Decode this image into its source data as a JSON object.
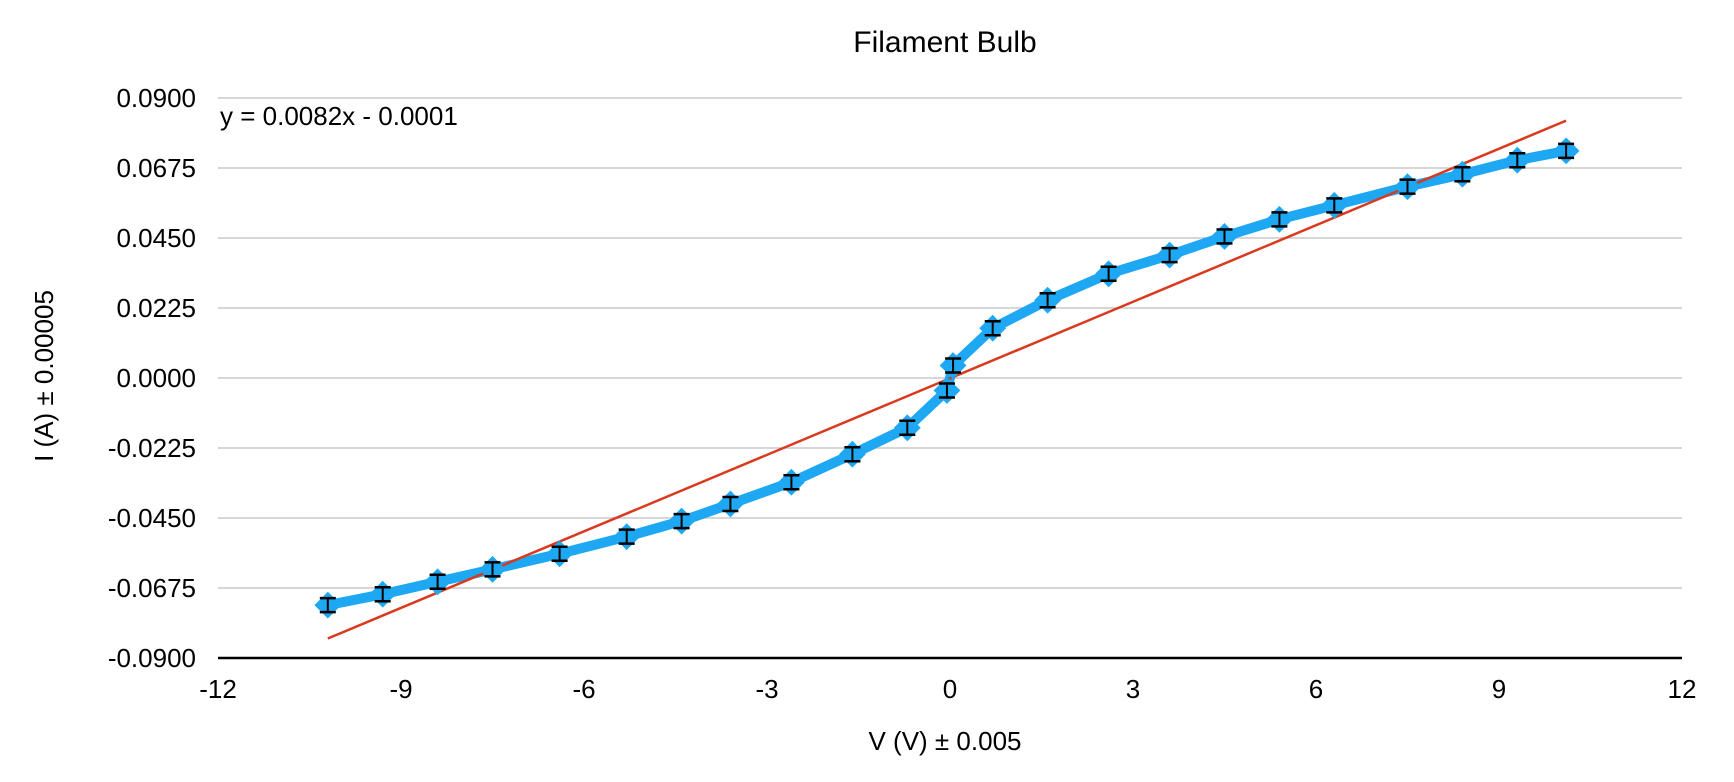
{
  "chart_data": {
    "type": "line",
    "title": "Filament Bulb",
    "xlabel": "V (V) ± 0.005",
    "ylabel": "I (A) ± 0.00005",
    "xlim": [
      -12,
      12
    ],
    "ylim": [
      -0.09,
      0.09
    ],
    "x_ticks": [
      "-12",
      "-9",
      "-6",
      "-3",
      "0",
      "3",
      "6",
      "9",
      "12"
    ],
    "y_ticks": [
      "0.0900",
      "0.0675",
      "0.0450",
      "0.0225",
      "0.0000",
      "-0.0225",
      "-0.0450",
      "-0.0675",
      "-0.0900"
    ],
    "grid": "horizontal",
    "legend": "none",
    "trendline_label": "y = 0.0082x - 0.0001",
    "series": [
      {
        "color": "#1ea7f2",
        "marker": "diamond",
        "error_bars": true,
        "points": [
          [
            -10.2,
            -0.073
          ],
          [
            -9.3,
            -0.0695
          ],
          [
            -8.4,
            -0.0655
          ],
          [
            -7.5,
            -0.0615
          ],
          [
            -6.4,
            -0.0565
          ],
          [
            -5.3,
            -0.051
          ],
          [
            -4.4,
            -0.046
          ],
          [
            -3.6,
            -0.0405
          ],
          [
            -2.6,
            -0.0335
          ],
          [
            -1.6,
            -0.0245
          ],
          [
            -0.7,
            -0.016
          ],
          [
            -0.05,
            -0.004
          ],
          [
            0.05,
            0.004
          ],
          [
            0.7,
            0.016
          ],
          [
            1.6,
            0.025
          ],
          [
            2.6,
            0.0335
          ],
          [
            3.6,
            0.0395
          ],
          [
            4.5,
            0.0455
          ],
          [
            5.4,
            0.051
          ],
          [
            6.3,
            0.0555
          ],
          [
            7.5,
            0.0615
          ],
          [
            8.4,
            0.0655
          ],
          [
            9.3,
            0.07
          ],
          [
            10.1,
            0.073
          ]
        ]
      },
      {
        "type": "linear-trendline",
        "color": "#d93a1f",
        "slope": 0.0082,
        "intercept": -0.0001,
        "x_range": [
          -10.2,
          10.1
        ]
      }
    ]
  }
}
